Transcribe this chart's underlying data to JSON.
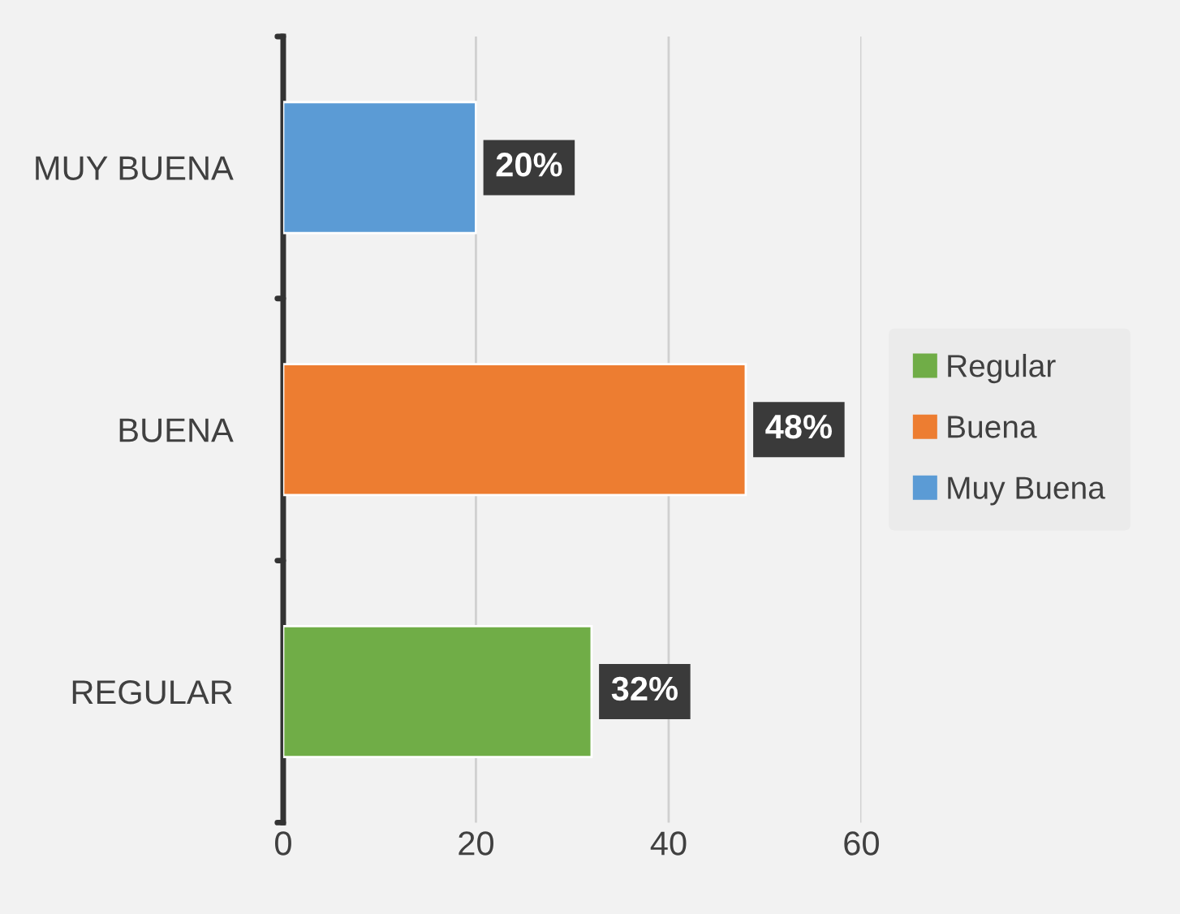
{
  "chart_data": {
    "type": "bar",
    "orientation": "horizontal",
    "categories": [
      "MUY BUENA",
      "BUENA",
      "REGULAR"
    ],
    "series": [
      {
        "name": "Regular",
        "color": "#70ad47",
        "values": [
          null,
          null,
          32
        ],
        "value_labels": [
          null,
          null,
          "32%"
        ]
      },
      {
        "name": "Buena",
        "color": "#ed7d31",
        "values": [
          null,
          48,
          null
        ],
        "value_labels": [
          null,
          "48%",
          null
        ]
      },
      {
        "name": "Muy Buena",
        "color": "#5b9bd5",
        "values": [
          20,
          null,
          null
        ],
        "value_labels": [
          "20%",
          null,
          null
        ]
      }
    ],
    "xlim": [
      0,
      60
    ],
    "xticks": [
      0,
      20,
      40,
      60
    ],
    "grid": "x",
    "legend": "right"
  }
}
